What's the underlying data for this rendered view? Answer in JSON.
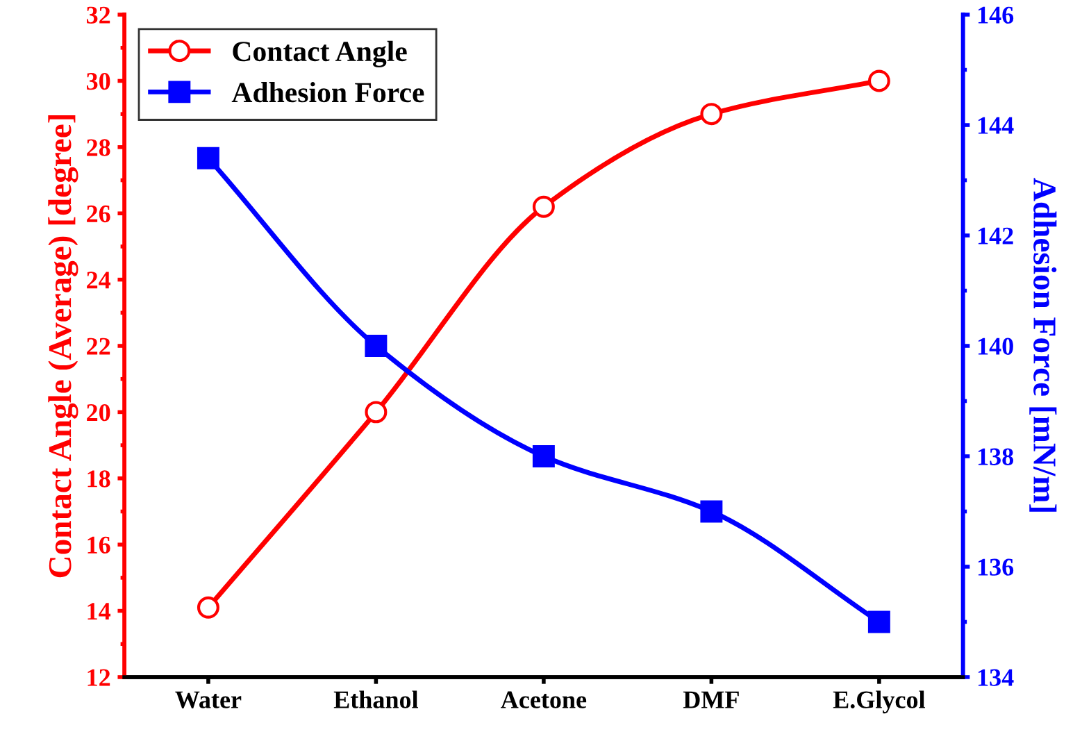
{
  "chart_data": {
    "type": "line",
    "ylabel": "Contact Angle (Average) [degree]",
    "y2label": "Adhesion Force [mN/m]",
    "categories": [
      "Water",
      "Ethanol",
      "Acetone",
      "DMF",
      "E.Glycol"
    ],
    "series": [
      {
        "name": "Contact Angle",
        "color": "#ff0000",
        "values": [
          14.1,
          20.0,
          26.2,
          29.0,
          30.0
        ],
        "marker": "circle"
      },
      {
        "name": "Adhesion Force",
        "color": "#0000ff",
        "values": [
          143.4,
          140.0,
          138.0,
          137.0,
          135.0
        ],
        "marker": "square",
        "axis": "y2"
      }
    ],
    "ylim": [
      12,
      32
    ],
    "yticks": [
      12,
      14,
      16,
      18,
      20,
      22,
      24,
      26,
      28,
      30,
      32
    ],
    "y2lim": [
      134,
      146
    ],
    "y2ticks": [
      134,
      136,
      138,
      140,
      142,
      144,
      146
    ],
    "legend": "top left",
    "grid": false,
    "line_style": "solid"
  }
}
